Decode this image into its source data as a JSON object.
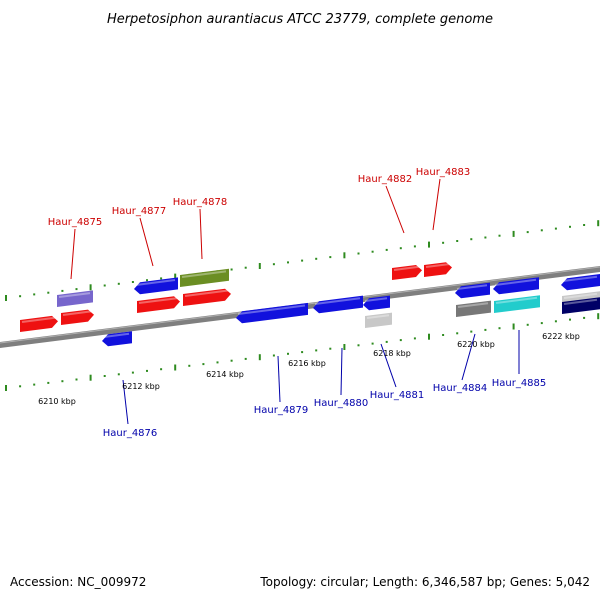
{
  "title": "Herpetosiphon aurantiacus ATCC 23779, complete genome",
  "footer": {
    "accession": "Accession: NC_009972",
    "summary": "Topology: circular; Length: 6,346,587 bp; Genes: 5,042"
  },
  "colors": {
    "background": "#ffffff",
    "backbone": "#7f7f7f",
    "tick": "#2e8b1f",
    "forward_label": "#cc0000",
    "reverse_label": "#0000aa",
    "red": "#ee1111",
    "blue": "#1111dd",
    "purple": "#7766cc",
    "olive": "#6b8e23",
    "gray": "#777777",
    "lightgray": "#c8c8c8",
    "cyan": "#22cccc",
    "navy": "#000066"
  },
  "kbp_labels": [
    "6210 kbp",
    "6212 kbp",
    "6214 kbp",
    "6216 kbp",
    "6218 kbp",
    "6220 kbp",
    "6222 kbp"
  ],
  "forward_gene_labels": [
    "Haur_4875",
    "Haur_4877",
    "Haur_4878",
    "Haur_4882",
    "Haur_4883"
  ],
  "reverse_gene_labels": [
    "Haur_4876",
    "Haur_4879",
    "Haur_4880",
    "Haur_4881",
    "Haur_4884",
    "Haur_4885"
  ]
}
